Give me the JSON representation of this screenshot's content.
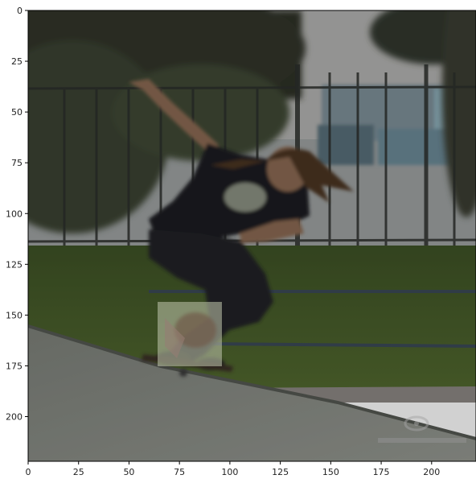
{
  "figure": {
    "type": "image-plot",
    "subject": "skateboarder mid-air over a concrete ramp in a skate park",
    "colors": {
      "sky": "#b8b8b8",
      "foliage": "#2f3526",
      "building": "#8a949a",
      "window": "#6f8a9a",
      "grass": "#465c2a",
      "concrete": "#8a8e87",
      "shirt": "#1c1f20",
      "skin": "#8c6a52",
      "hair": "#4b3524",
      "axis": "#000000"
    }
  },
  "axes": {
    "x_ticks": [
      0,
      25,
      50,
      75,
      100,
      125,
      150,
      175,
      200
    ],
    "y_ticks": [
      0,
      25,
      50,
      75,
      100,
      125,
      150,
      175,
      200
    ],
    "x_range": [
      0,
      222
    ],
    "y_range": [
      0,
      222
    ]
  },
  "overlay": {
    "description": "semi-transparent bright patch near the skateboard",
    "x_range": [
      64,
      96
    ],
    "y_range": [
      144,
      175
    ]
  }
}
